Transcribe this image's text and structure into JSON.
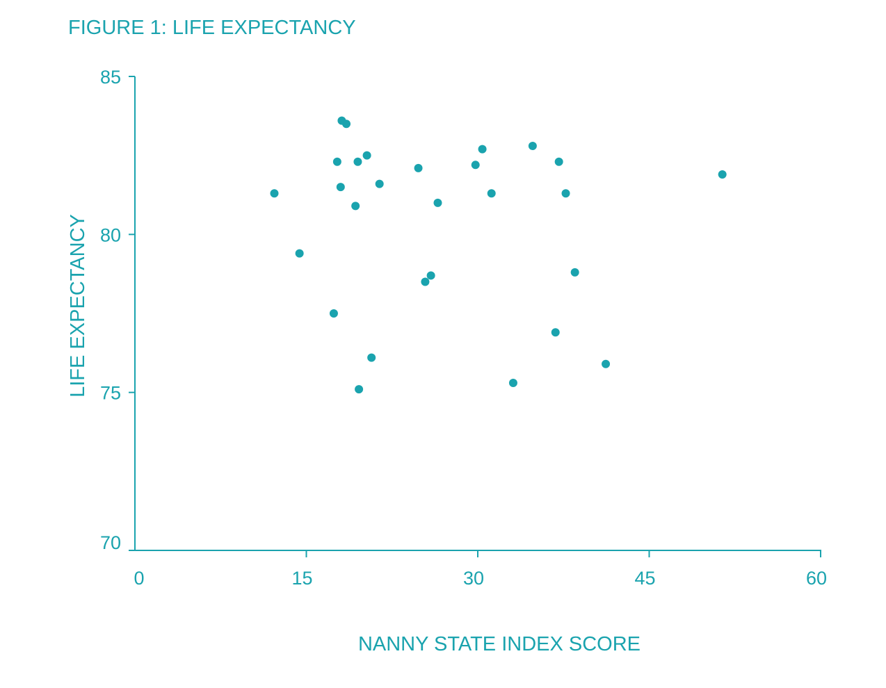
{
  "chart_data": {
    "type": "scatter",
    "title": "FIGURE 1: LIFE EXPECTANCY",
    "xlabel": "NANNY STATE INDEX SCORE",
    "ylabel": "LIFE EXPECTANCY",
    "xlim": [
      0,
      60
    ],
    "ylim": [
      70,
      85
    ],
    "xticks": [
      "0",
      "15",
      "30",
      "45",
      "60"
    ],
    "yticks": [
      "70",
      "75",
      "80",
      "85"
    ],
    "grid": false,
    "color": "#1aa3ae",
    "points": [
      {
        "x": 12.2,
        "y": 81.3
      },
      {
        "x": 14.4,
        "y": 79.4
      },
      {
        "x": 17.4,
        "y": 77.5
      },
      {
        "x": 17.7,
        "y": 82.3
      },
      {
        "x": 18.0,
        "y": 81.5
      },
      {
        "x": 18.1,
        "y": 83.6
      },
      {
        "x": 18.5,
        "y": 83.5
      },
      {
        "x": 19.3,
        "y": 80.9
      },
      {
        "x": 19.5,
        "y": 82.3
      },
      {
        "x": 19.6,
        "y": 75.1
      },
      {
        "x": 20.3,
        "y": 82.5
      },
      {
        "x": 20.7,
        "y": 76.1
      },
      {
        "x": 21.4,
        "y": 81.6
      },
      {
        "x": 24.8,
        "y": 82.1
      },
      {
        "x": 25.4,
        "y": 78.5
      },
      {
        "x": 25.9,
        "y": 78.7
      },
      {
        "x": 26.5,
        "y": 81.0
      },
      {
        "x": 29.8,
        "y": 82.2
      },
      {
        "x": 30.4,
        "y": 82.7
      },
      {
        "x": 31.2,
        "y": 81.3
      },
      {
        "x": 33.1,
        "y": 75.3
      },
      {
        "x": 34.8,
        "y": 82.8
      },
      {
        "x": 36.8,
        "y": 76.9
      },
      {
        "x": 37.1,
        "y": 82.3
      },
      {
        "x": 37.7,
        "y": 81.3
      },
      {
        "x": 38.5,
        "y": 78.8
      },
      {
        "x": 41.2,
        "y": 75.9
      },
      {
        "x": 51.4,
        "y": 81.9
      }
    ]
  }
}
